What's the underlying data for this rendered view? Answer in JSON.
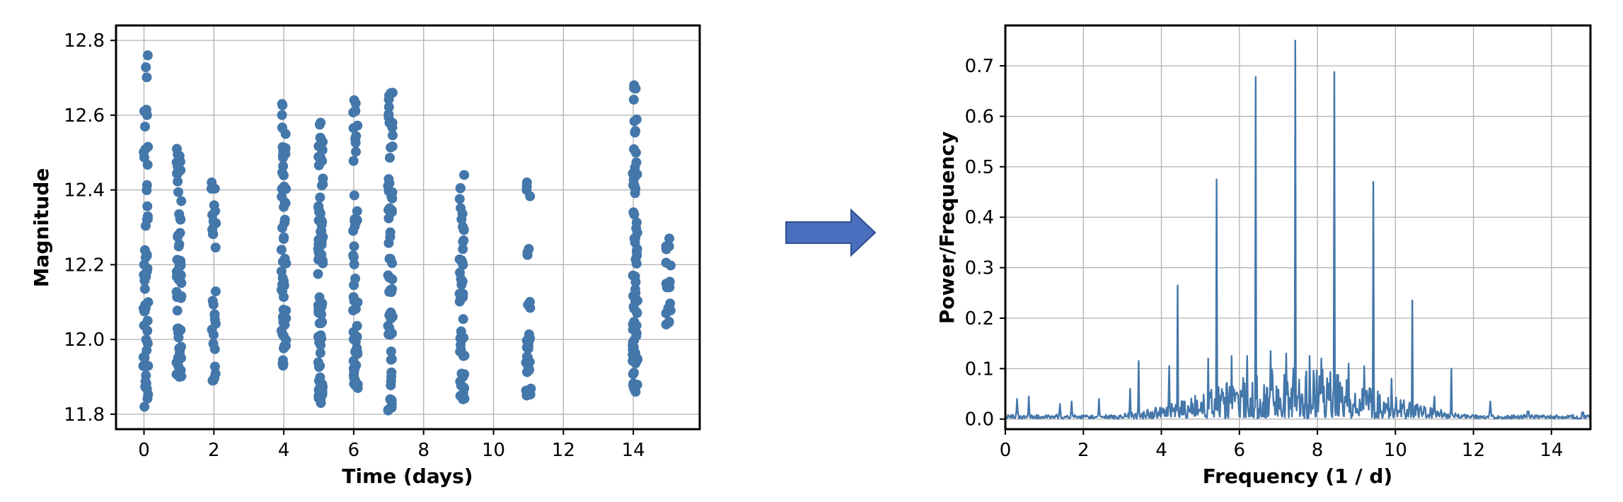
{
  "chart_data": [
    {
      "type": "scatter",
      "title": "",
      "xlabel": "Time (days)",
      "ylabel": "Magnitude",
      "xlim": [
        -0.8,
        15.9
      ],
      "ylim": [
        11.76,
        12.84
      ],
      "grid": true,
      "color": "#4477aa",
      "xticks": [
        0,
        2,
        4,
        6,
        8,
        10,
        12,
        14
      ],
      "yticks": [
        11.8,
        12.0,
        12.2,
        12.4,
        12.6,
        12.8
      ],
      "clusters": [
        {
          "day": 0.05,
          "min": 11.82,
          "max": 12.76,
          "count": 55
        },
        {
          "day": 1.0,
          "min": 11.9,
          "max": 12.51,
          "count": 60
        },
        {
          "day": 2.0,
          "min": 11.89,
          "max": 12.42,
          "count": 30
        },
        {
          "day": 4.0,
          "min": 11.93,
          "max": 12.63,
          "count": 60
        },
        {
          "day": 5.05,
          "min": 11.83,
          "max": 12.58,
          "count": 80
        },
        {
          "day": 6.05,
          "min": 11.87,
          "max": 12.64,
          "count": 55
        },
        {
          "day": 7.05,
          "min": 11.81,
          "max": 12.66,
          "count": 65
        },
        {
          "day": 9.1,
          "min": 11.84,
          "max": 12.44,
          "count": 50
        },
        {
          "day": 11.0,
          "min": 11.85,
          "max": 12.42,
          "count": 30
        },
        {
          "day": 14.05,
          "min": 11.86,
          "max": 12.68,
          "count": 75
        },
        {
          "day": 15.0,
          "min": 12.04,
          "max": 12.27,
          "count": 18
        }
      ]
    },
    {
      "type": "line",
      "title": "",
      "xlabel": "Frequency (1 / d)",
      "ylabel": "Power/Frequency",
      "xlim": [
        0,
        15
      ],
      "ylim": [
        -0.02,
        0.78
      ],
      "grid": true,
      "color": "#4477aa",
      "xticks": [
        0,
        2,
        4,
        6,
        8,
        10,
        12,
        14
      ],
      "yticks": [
        0.0,
        0.1,
        0.2,
        0.3,
        0.4,
        0.5,
        0.6,
        0.7
      ],
      "peaks": [
        {
          "x": 0.3,
          "y": 0.04
        },
        {
          "x": 0.6,
          "y": 0.045
        },
        {
          "x": 1.4,
          "y": 0.03
        },
        {
          "x": 1.7,
          "y": 0.035
        },
        {
          "x": 2.4,
          "y": 0.04
        },
        {
          "x": 3.2,
          "y": 0.06
        },
        {
          "x": 3.42,
          "y": 0.115
        },
        {
          "x": 4.2,
          "y": 0.105
        },
        {
          "x": 4.42,
          "y": 0.265
        },
        {
          "x": 5.2,
          "y": 0.12
        },
        {
          "x": 5.42,
          "y": 0.475
        },
        {
          "x": 5.8,
          "y": 0.125
        },
        {
          "x": 6.2,
          "y": 0.125
        },
        {
          "x": 6.42,
          "y": 0.678
        },
        {
          "x": 6.8,
          "y": 0.135
        },
        {
          "x": 7.2,
          "y": 0.13
        },
        {
          "x": 7.43,
          "y": 0.75
        },
        {
          "x": 7.8,
          "y": 0.125
        },
        {
          "x": 8.1,
          "y": 0.12
        },
        {
          "x": 8.43,
          "y": 0.688
        },
        {
          "x": 8.8,
          "y": 0.11
        },
        {
          "x": 9.2,
          "y": 0.105
        },
        {
          "x": 9.43,
          "y": 0.47
        },
        {
          "x": 9.9,
          "y": 0.08
        },
        {
          "x": 10.43,
          "y": 0.235
        },
        {
          "x": 11.0,
          "y": 0.045
        },
        {
          "x": 11.43,
          "y": 0.1
        },
        {
          "x": 12.43,
          "y": 0.035
        },
        {
          "x": 13.4,
          "y": 0.015
        },
        {
          "x": 14.8,
          "y": 0.01
        }
      ]
    }
  ],
  "arrow": {
    "color": "#4a6fbe",
    "edge": "#2f4f8f"
  }
}
